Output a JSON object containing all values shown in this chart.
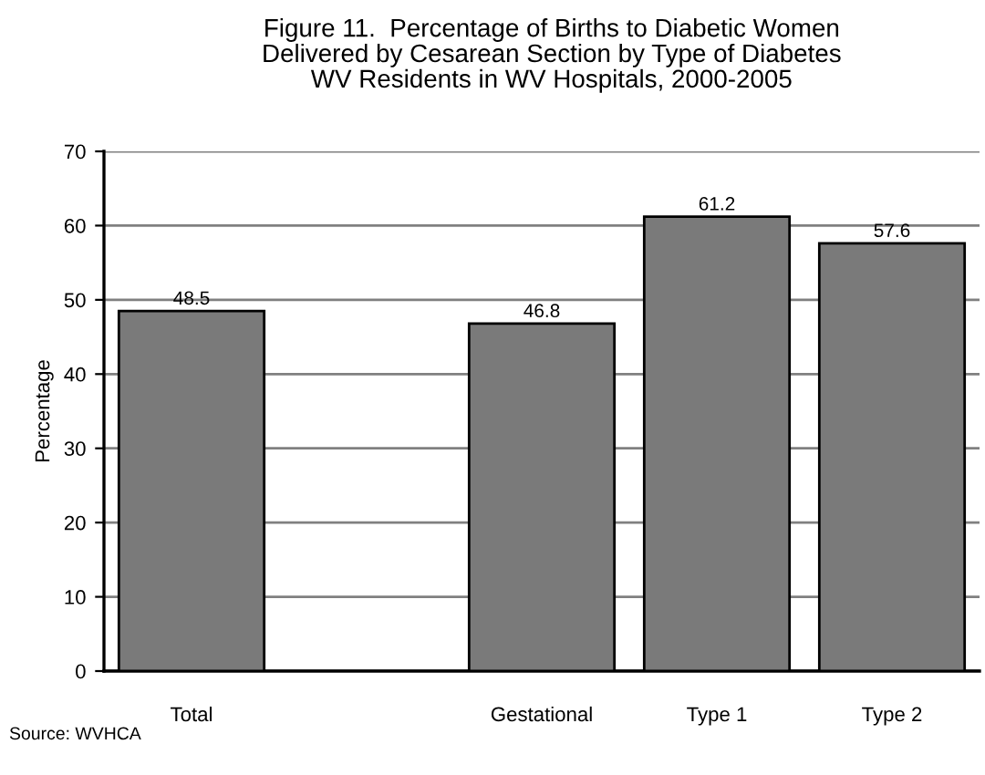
{
  "chart_data": {
    "type": "bar",
    "title": "Figure 11.  Percentage of Births to Diabetic Women\nDelivered by Cesarean Section by Type of Diabetes\nWV Residents in WV Hospitals, 2000-2005",
    "ylabel": "Percentage",
    "categories": [
      "Total",
      null,
      "Gestational",
      "Type 1",
      "Type 2"
    ],
    "values": [
      48.5,
      null,
      46.8,
      61.2,
      57.6
    ],
    "color": "#7a7a7a",
    "ylim": [
      0,
      70
    ],
    "yticks": [
      0,
      10,
      20,
      30,
      40,
      50,
      60,
      70
    ],
    "grid": "y",
    "data_labels": true,
    "annotations": [
      "Source: WVHCA"
    ]
  }
}
